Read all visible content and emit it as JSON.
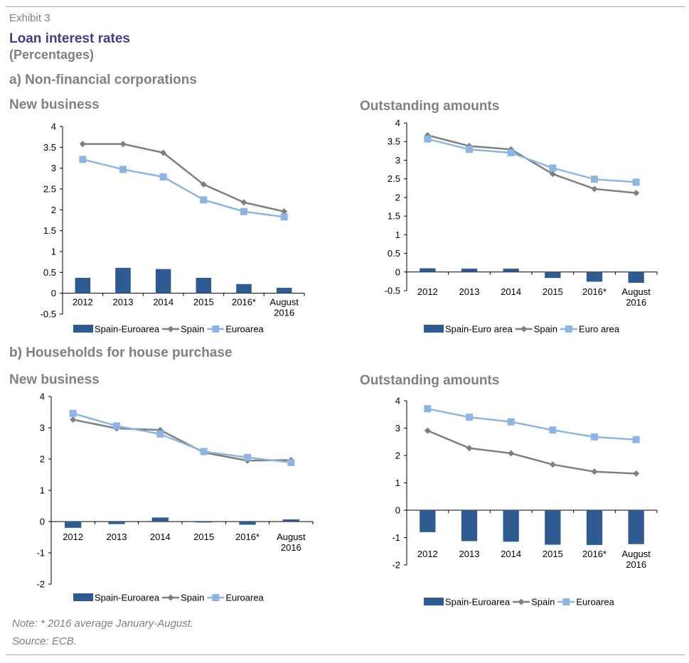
{
  "exhibit": "Exhibit 3",
  "title": "Loan interest rates",
  "subtitle": "(Percentages)",
  "section_a": "a) Non-financial corporations",
  "section_b": "b) Households for house purchase",
  "note": "Note: * 2016 average January-August.",
  "source": "Source: ECB.",
  "colors": {
    "bar": "#2e5b91",
    "spain": "#7f7f7f",
    "euro": "#8db4e2",
    "text_grey": "#808080",
    "title_blue": "#3f3f8f"
  },
  "chart_data": [
    {
      "id": "nfc-new",
      "type": "bar+line",
      "title": "New business",
      "categories": [
        "2012",
        "2013",
        "2014",
        "2015",
        "2016*",
        "August|2016"
      ],
      "ylim": [
        -0.5,
        4
      ],
      "yticks": [
        -0.5,
        0,
        0.5,
        1,
        1.5,
        2,
        2.5,
        3,
        3.5,
        4
      ],
      "legend_placement": "bottom",
      "series": [
        {
          "name": "Spain-Euroarea",
          "kind": "bar",
          "values": [
            0.37,
            0.61,
            0.58,
            0.37,
            0.22,
            0.13
          ]
        },
        {
          "name": "Spain",
          "kind": "line",
          "values": [
            3.58,
            3.58,
            3.37,
            2.61,
            2.18,
            1.96
          ]
        },
        {
          "name": "Euroarea",
          "kind": "line",
          "values": [
            3.21,
            2.97,
            2.79,
            2.24,
            1.96,
            1.83
          ]
        }
      ]
    },
    {
      "id": "nfc-out",
      "type": "bar+line",
      "title": "Outstanding amounts",
      "categories": [
        "2012",
        "2013",
        "2014",
        "2015",
        "2016*",
        "August|2016"
      ],
      "ylim": [
        -0.5,
        4
      ],
      "yticks": [
        -0.5,
        0,
        0.5,
        1,
        1.5,
        2,
        2.5,
        3,
        3.5,
        4
      ],
      "legend_placement": "bottom",
      "series": [
        {
          "name": "Spain-Euro area",
          "kind": "bar",
          "values": [
            0.1,
            0.09,
            0.09,
            -0.16,
            -0.26,
            -0.29
          ]
        },
        {
          "name": "Spain",
          "kind": "line",
          "values": [
            3.67,
            3.38,
            3.29,
            2.63,
            2.23,
            2.12
          ]
        },
        {
          "name": "Euro area",
          "kind": "line",
          "values": [
            3.57,
            3.29,
            3.2,
            2.79,
            2.49,
            2.41
          ]
        }
      ]
    },
    {
      "id": "hh-new",
      "type": "bar+line",
      "title": "New business",
      "categories": [
        "2012",
        "2013",
        "2014",
        "2015",
        "2016*",
        "August|2016"
      ],
      "ylim": [
        -2,
        4
      ],
      "yticks": [
        -2,
        -1,
        0,
        1,
        2,
        3,
        4
      ],
      "legend_placement": "bottom",
      "series": [
        {
          "name": "Spain-Euroarea",
          "kind": "bar",
          "values": [
            -0.2,
            -0.08,
            0.13,
            -0.03,
            -0.1,
            0.07
          ]
        },
        {
          "name": "Spain",
          "kind": "line",
          "values": [
            3.26,
            2.98,
            2.93,
            2.21,
            1.95,
            1.97
          ]
        },
        {
          "name": "Euroarea",
          "kind": "line",
          "values": [
            3.46,
            3.06,
            2.8,
            2.24,
            2.05,
            1.89
          ]
        }
      ]
    },
    {
      "id": "hh-out",
      "type": "bar+line",
      "title": "Outstanding amounts",
      "categories": [
        "2012",
        "2013",
        "2014",
        "2015",
        "2016*",
        "August|2016"
      ],
      "ylim": [
        -2,
        4
      ],
      "yticks": [
        -2,
        -1,
        0,
        1,
        2,
        3,
        4
      ],
      "legend_placement": "bottom",
      "series": [
        {
          "name": "Spain-Euroarea",
          "kind": "bar",
          "values": [
            -0.8,
            -1.13,
            -1.15,
            -1.26,
            -1.27,
            -1.24
          ]
        },
        {
          "name": "Spain",
          "kind": "line",
          "values": [
            2.91,
            2.27,
            2.08,
            1.67,
            1.41,
            1.34
          ]
        },
        {
          "name": "Euroarea",
          "kind": "line",
          "values": [
            3.71,
            3.4,
            3.23,
            2.93,
            2.68,
            2.58
          ]
        }
      ]
    }
  ]
}
